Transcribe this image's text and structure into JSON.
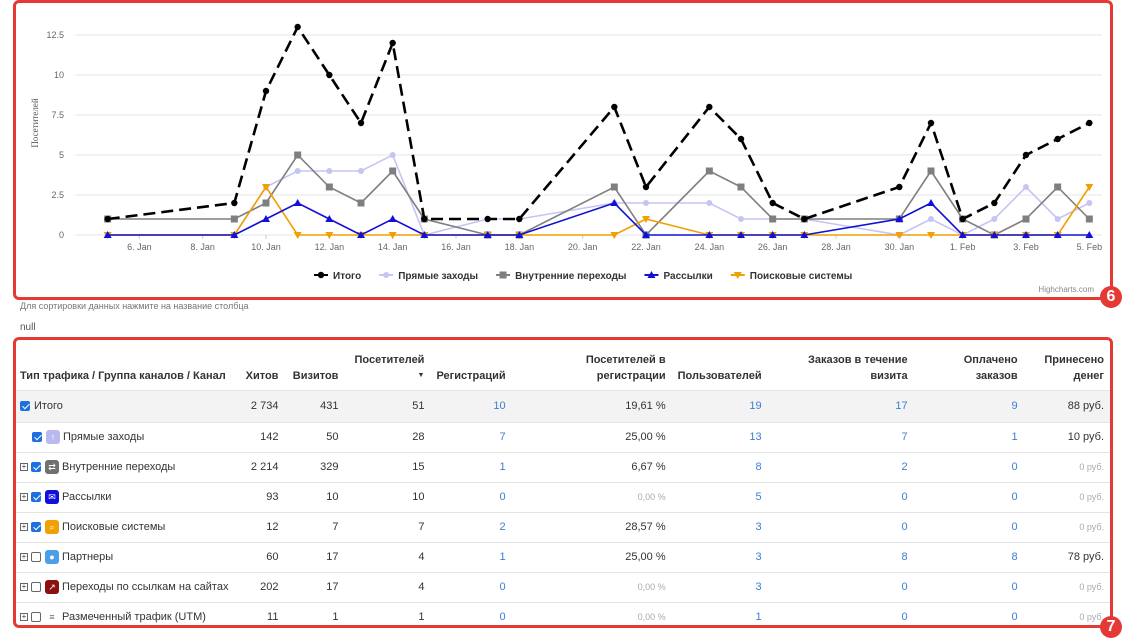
{
  "chart_data": {
    "type": "line",
    "title": "",
    "ylabel": "Посетителей",
    "xlabel": "",
    "ylim": [
      0,
      13.5
    ],
    "yticks": [
      0,
      2.5,
      5,
      7.5,
      10,
      12.5
    ],
    "ytick_labels": [
      "0",
      "2.5",
      "5",
      "7.5",
      "10",
      "12.5"
    ],
    "x_start": "4. Jan",
    "x_tick_labels": [
      "6. Jan",
      "8. Jan",
      "10. Jan",
      "12. Jan",
      "14. Jan",
      "16. Jan",
      "18. Jan",
      "20. Jan",
      "22. Jan",
      "24. Jan",
      "26. Jan",
      "28. Jan",
      "30. Jan",
      "1. Feb",
      "3. Feb",
      "5. Feb"
    ],
    "x": [
      "5. Jan",
      "9. Jan",
      "10. Jan",
      "11. Jan",
      "12. Jan",
      "13. Jan",
      "14. Jan",
      "15. Jan",
      "17. Jan",
      "18. Jan",
      "21. Jan",
      "22. Jan",
      "24. Jan",
      "25. Jan",
      "26. Jan",
      "27. Jan",
      "30. Jan",
      "31. Jan",
      "1. Feb",
      "2. Feb",
      "3. Feb",
      "4. Feb",
      "5. Feb"
    ],
    "grid": true,
    "legend_position": "bottom-center",
    "series": [
      {
        "name": "Итого",
        "color": "#000000",
        "dash": true,
        "marker": "circle",
        "values": [
          1,
          2,
          9,
          13,
          10,
          7,
          12,
          1,
          1,
          1,
          8,
          3,
          8,
          6,
          2,
          1,
          3,
          7,
          1,
          2,
          5,
          6,
          7
        ]
      },
      {
        "name": "Прямые заходы",
        "color": "#c5c5f5",
        "dash": false,
        "marker": "circle",
        "values": [
          0,
          0,
          3,
          4,
          4,
          4,
          5,
          0,
          1,
          1,
          2,
          2,
          2,
          1,
          1,
          1,
          0,
          1,
          0,
          1,
          3,
          1,
          2
        ]
      },
      {
        "name": "Внутренние переходы",
        "color": "#7f7f7f",
        "dash": false,
        "marker": "square",
        "values": [
          1,
          1,
          2,
          5,
          3,
          2,
          4,
          1,
          0,
          0,
          3,
          0,
          4,
          3,
          1,
          1,
          1,
          4,
          1,
          0,
          1,
          3,
          1
        ]
      },
      {
        "name": "Рассылки",
        "color": "#1010d8",
        "dash": false,
        "marker": "triangle",
        "values": [
          0,
          0,
          1,
          2,
          1,
          0,
          1,
          0,
          0,
          0,
          2,
          0,
          0,
          0,
          0,
          0,
          1,
          2,
          0,
          0,
          0,
          0,
          0
        ]
      },
      {
        "name": "Поисковые системы",
        "color": "#f0a000",
        "dash": false,
        "marker": "triangle-down",
        "values": [
          0,
          0,
          3,
          0,
          0,
          0,
          0,
          0,
          0,
          0,
          0,
          1,
          0,
          0,
          0,
          0,
          0,
          0,
          0,
          0,
          0,
          0,
          3
        ]
      }
    ],
    "credits": "Highcharts.com"
  },
  "badges": {
    "chart": "6",
    "table": "7"
  },
  "sort_hint": "Для сортировки данных нажмите на название столбца",
  "null_text": "null",
  "table": {
    "headers": [
      "Тип трафика / Группа каналов / Канал",
      "Хитов",
      "Визитов",
      "Посетителей",
      "Регистраций",
      "Посетителей в регистрации",
      "Пользователей",
      "Заказов в течение визита",
      "Оплачено заказов",
      "Принесено денег"
    ],
    "rows": [
      {
        "name": "Итого",
        "hits": "2 734",
        "visits": "431",
        "visitors": "51",
        "regs": "10",
        "conv": "19,61 %",
        "users": "19",
        "orders": "17",
        "paid": "9",
        "money": "88 руб.",
        "expand": false,
        "checked": true,
        "icon": "none",
        "icon_color": "",
        "indent": false
      },
      {
        "name": "Прямые заходы",
        "hits": "142",
        "visits": "50",
        "visitors": "28",
        "regs": "7",
        "conv": "25,00 %",
        "users": "13",
        "orders": "7",
        "paid": "1",
        "money": "10 руб.",
        "expand": false,
        "checked": true,
        "icon": "arrow-up-icon",
        "icon_color": "#b9b9ef",
        "indent": true
      },
      {
        "name": "Внутренние переходы",
        "hits": "2 214",
        "visits": "329",
        "visitors": "15",
        "regs": "1",
        "conv": "6,67 %",
        "users": "8",
        "orders": "2",
        "paid": "0",
        "money": "0 руб.",
        "expand": true,
        "checked": true,
        "icon": "swap-icon",
        "icon_color": "#707070",
        "indent": false
      },
      {
        "name": "Рассылки",
        "hits": "93",
        "visits": "10",
        "visitors": "10",
        "regs": "0",
        "conv": "0,00 %",
        "users": "5",
        "orders": "0",
        "paid": "0",
        "money": "0 руб.",
        "expand": true,
        "checked": true,
        "icon": "mail-icon",
        "icon_color": "#1010d8",
        "indent": false
      },
      {
        "name": "Поисковые системы",
        "hits": "12",
        "visits": "7",
        "visitors": "7",
        "regs": "2",
        "conv": "28,57 %",
        "users": "3",
        "orders": "0",
        "paid": "0",
        "money": "0 руб.",
        "expand": true,
        "checked": true,
        "icon": "search-icon",
        "icon_color": "#f0a000",
        "indent": false
      },
      {
        "name": "Партнеры",
        "hits": "60",
        "visits": "17",
        "visitors": "4",
        "regs": "1",
        "conv": "25,00 %",
        "users": "3",
        "orders": "8",
        "paid": "8",
        "money": "78 руб.",
        "expand": true,
        "checked": false,
        "icon": "chat-icon",
        "icon_color": "#4a9fe8",
        "indent": false
      },
      {
        "name": "Переходы по ссылкам на сайтах",
        "hits": "202",
        "visits": "17",
        "visitors": "4",
        "regs": "0",
        "conv": "0,00 %",
        "users": "3",
        "orders": "0",
        "paid": "0",
        "money": "0 руб.",
        "expand": true,
        "checked": false,
        "icon": "external-link-icon",
        "icon_color": "#8b1010",
        "indent": false
      },
      {
        "name": "Размеченный трафик (UTM)",
        "hits": "11",
        "visits": "1",
        "visitors": "1",
        "regs": "0",
        "conv": "0,00 %",
        "users": "1",
        "orders": "0",
        "paid": "0",
        "money": "0 руб.",
        "expand": true,
        "checked": false,
        "icon": "list-icon",
        "icon_color": "#666666",
        "indent": false
      }
    ]
  }
}
